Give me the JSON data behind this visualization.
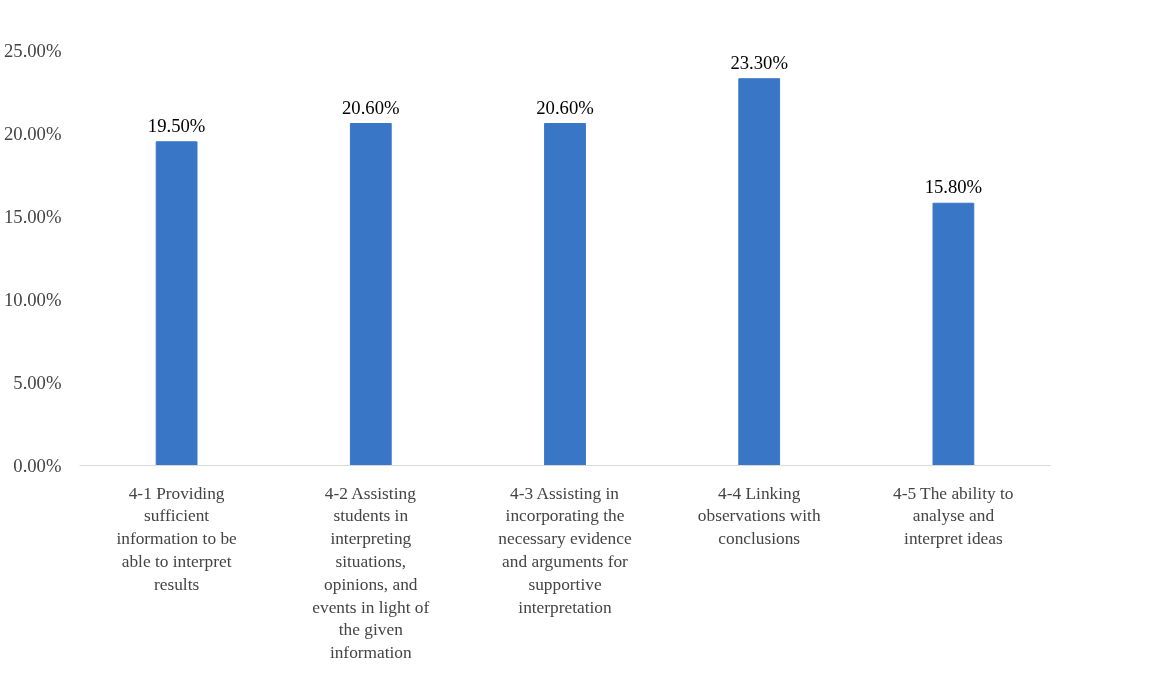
{
  "chart_data": {
    "type": "bar",
    "categories": [
      "4-1 Providing sufficient information to be able to interpret results",
      "4-2 Assisting students in interpreting situations, opinions, and events in light of the given information",
      "4-3 Assisting in incorporating the necessary evidence and arguments for supportive interpretation",
      "4-4 Linking observations with conclusions",
      "4-5 The ability to analyse and interpret ideas"
    ],
    "values": [
      19.5,
      20.6,
      20.6,
      23.3,
      15.8
    ],
    "value_labels": [
      "19.50%",
      "20.60%",
      "20.60%",
      "23.30%",
      "15.80%"
    ],
    "color": "#3a76c6",
    "ylim": [
      0,
      25
    ],
    "yticks": [
      {
        "value": 0,
        "label": "0.00%"
      },
      {
        "value": 5,
        "label": "5.00%"
      },
      {
        "value": 10,
        "label": "10.00%"
      },
      {
        "value": 15,
        "label": "15.00%"
      },
      {
        "value": 20,
        "label": "20.00%"
      },
      {
        "value": 25,
        "label": "25.00%"
      }
    ],
    "grid": false
  }
}
